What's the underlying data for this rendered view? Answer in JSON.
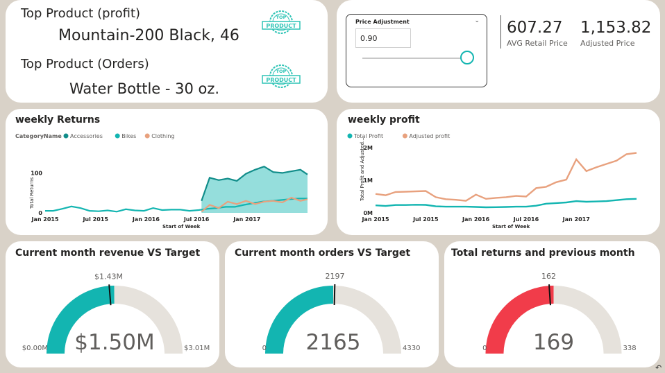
{
  "top_products": {
    "profit_heading": "Top Product (profit)",
    "profit_value": "Mountain-200 Black, 46",
    "orders_heading": "Top Product (Orders)",
    "orders_value": "Water Bottle - 30 oz.",
    "badge_top": "TOP",
    "badge_product": "PRODUCT",
    "badge_icon": "top-product-stamp-icon"
  },
  "price_panel": {
    "slicer_label": "Price Adjustment",
    "slicer_value": "0.90",
    "slider_level": 1.0,
    "avg_retail_value": "607.27",
    "avg_retail_label": "AVG Retail Price",
    "adjusted_value": "1,153.82",
    "adjusted_label": "Adjusted Price"
  },
  "weekly_returns": {
    "title": "weekly Returns",
    "legend_title": "CategoryName",
    "legend": [
      {
        "name": "Accessories",
        "color": "#118d8a"
      },
      {
        "name": "Bikes",
        "color": "#13b5b1"
      },
      {
        "name": "Clothing",
        "color": "#e8a17e"
      }
    ],
    "ylabel": "Total Returns",
    "xlabel": "Start of Week",
    "x_ticks": [
      "Jan 2015",
      "Jul 2015",
      "Jan 2016",
      "Jul 2016",
      "Jan 2017"
    ],
    "y_ticks": [
      "0",
      "100"
    ]
  },
  "weekly_profit": {
    "title": "weekly profit",
    "legend": [
      {
        "name": "Total Profit",
        "color": "#13b5b1"
      },
      {
        "name": "Adjusted profit",
        "color": "#e8a17e"
      }
    ],
    "ylabel": "Total Profit and Adjusted...",
    "xlabel": "Start of Week",
    "x_ticks": [
      "Jan 2015",
      "Jul 2015",
      "Jan 2016",
      "Jul 2016",
      "Jan 2017"
    ],
    "y_ticks": [
      "0M",
      "1M",
      "2M"
    ]
  },
  "gauges": [
    {
      "title": "Current month revenue VS Target",
      "value": "$1.50M",
      "target": "$1.43M",
      "min": "$0.00M",
      "max": "$3.01M",
      "value_num": 1.5,
      "target_num": 1.43,
      "max_num": 3.01,
      "color": "#13b5b1"
    },
    {
      "title": "Current month orders VS Target",
      "value": "2165",
      "target": "2197",
      "min": "0",
      "max": "4330",
      "value_num": 2165,
      "target_num": 2197,
      "max_num": 4330,
      "color": "#13b5b1"
    },
    {
      "title": "Total returns and previous month",
      "value": "169",
      "target": "162",
      "min": "0",
      "max": "338",
      "value_num": 169,
      "target_num": 162,
      "max_num": 338,
      "color": "#f13c4a"
    }
  ],
  "chart_data": [
    {
      "type": "area",
      "title": "weekly Returns",
      "xlabel": "Start of Week",
      "ylabel": "Total Returns",
      "x_range": [
        "2015-01",
        "2017-08"
      ],
      "ylim": [
        0,
        125
      ],
      "legend_position": "top-left",
      "grid": false,
      "series": [
        {
          "name": "Accessories",
          "x": [
            2016.55,
            2016.63,
            2016.72,
            2016.81,
            2016.9,
            2016.99,
            2017.08,
            2017.17,
            2017.26,
            2017.35,
            2017.44,
            2017.53,
            2017.6
          ],
          "values": [
            30,
            88,
            82,
            86,
            80,
            98,
            108,
            116,
            102,
            100,
            104,
            108,
            96
          ]
        },
        {
          "name": "Bikes",
          "x": [
            2015.0,
            2015.08,
            2015.17,
            2015.26,
            2015.35,
            2015.44,
            2015.53,
            2015.62,
            2015.71,
            2015.8,
            2015.89,
            2015.98,
            2016.07,
            2016.16,
            2016.25,
            2016.34,
            2016.43,
            2016.52,
            2016.61,
            2016.7,
            2016.79,
            2016.88,
            2016.97,
            2017.06,
            2017.15,
            2017.24,
            2017.33,
            2017.42,
            2017.51,
            2017.6
          ],
          "values": [
            5,
            5,
            10,
            16,
            12,
            5,
            4,
            6,
            3,
            9,
            6,
            5,
            12,
            7,
            8,
            8,
            5,
            7,
            10,
            12,
            15,
            15,
            20,
            24,
            28,
            30,
            32,
            34,
            36,
            36
          ]
        },
        {
          "name": "Clothing",
          "x": [
            2016.55,
            2016.63,
            2016.72,
            2016.81,
            2016.9,
            2016.99,
            2017.08,
            2017.17,
            2017.26,
            2017.35,
            2017.44,
            2017.53,
            2017.6
          ],
          "values": [
            3,
            20,
            12,
            28,
            22,
            30,
            22,
            28,
            30,
            26,
            38,
            30,
            34
          ]
        }
      ]
    },
    {
      "type": "line",
      "title": "weekly profit",
      "xlabel": "Start of Week",
      "ylabel": "Total Profit and Adjusted...",
      "x_range": [
        "2015-01",
        "2017-08"
      ],
      "ylim": [
        0,
        2000000
      ],
      "legend_position": "top-left",
      "grid": false,
      "series": [
        {
          "name": "Total Profit",
          "x": [
            2015.0,
            2015.1,
            2015.2,
            2015.3,
            2015.4,
            2015.5,
            2015.6,
            2015.7,
            2015.8,
            2015.9,
            2016.0,
            2016.1,
            2016.2,
            2016.3,
            2016.4,
            2016.5,
            2016.6,
            2016.7,
            2016.8,
            2016.9,
            2017.0,
            2017.1,
            2017.2,
            2017.3,
            2017.4,
            2017.5,
            2017.6
          ],
          "values": [
            230000,
            210000,
            240000,
            240000,
            250000,
            245000,
            200000,
            190000,
            190000,
            190000,
            180000,
            170000,
            175000,
            180000,
            190000,
            190000,
            220000,
            280000,
            300000,
            320000,
            360000,
            340000,
            350000,
            360000,
            390000,
            420000,
            430000
          ]
        },
        {
          "name": "Adjusted profit",
          "x": [
            2015.0,
            2015.1,
            2015.2,
            2015.3,
            2015.4,
            2015.5,
            2015.6,
            2015.7,
            2015.8,
            2015.9,
            2016.0,
            2016.1,
            2016.2,
            2016.3,
            2016.4,
            2016.5,
            2016.6,
            2016.7,
            2016.8,
            2016.9,
            2017.0,
            2017.1,
            2017.2,
            2017.3,
            2017.4,
            2017.5,
            2017.6
          ],
          "values": [
            580000,
            540000,
            640000,
            650000,
            660000,
            670000,
            480000,
            420000,
            400000,
            370000,
            560000,
            430000,
            460000,
            480000,
            520000,
            500000,
            760000,
            800000,
            940000,
            1020000,
            1640000,
            1280000,
            1400000,
            1500000,
            1600000,
            1800000,
            1840000
          ]
        }
      ]
    }
  ]
}
